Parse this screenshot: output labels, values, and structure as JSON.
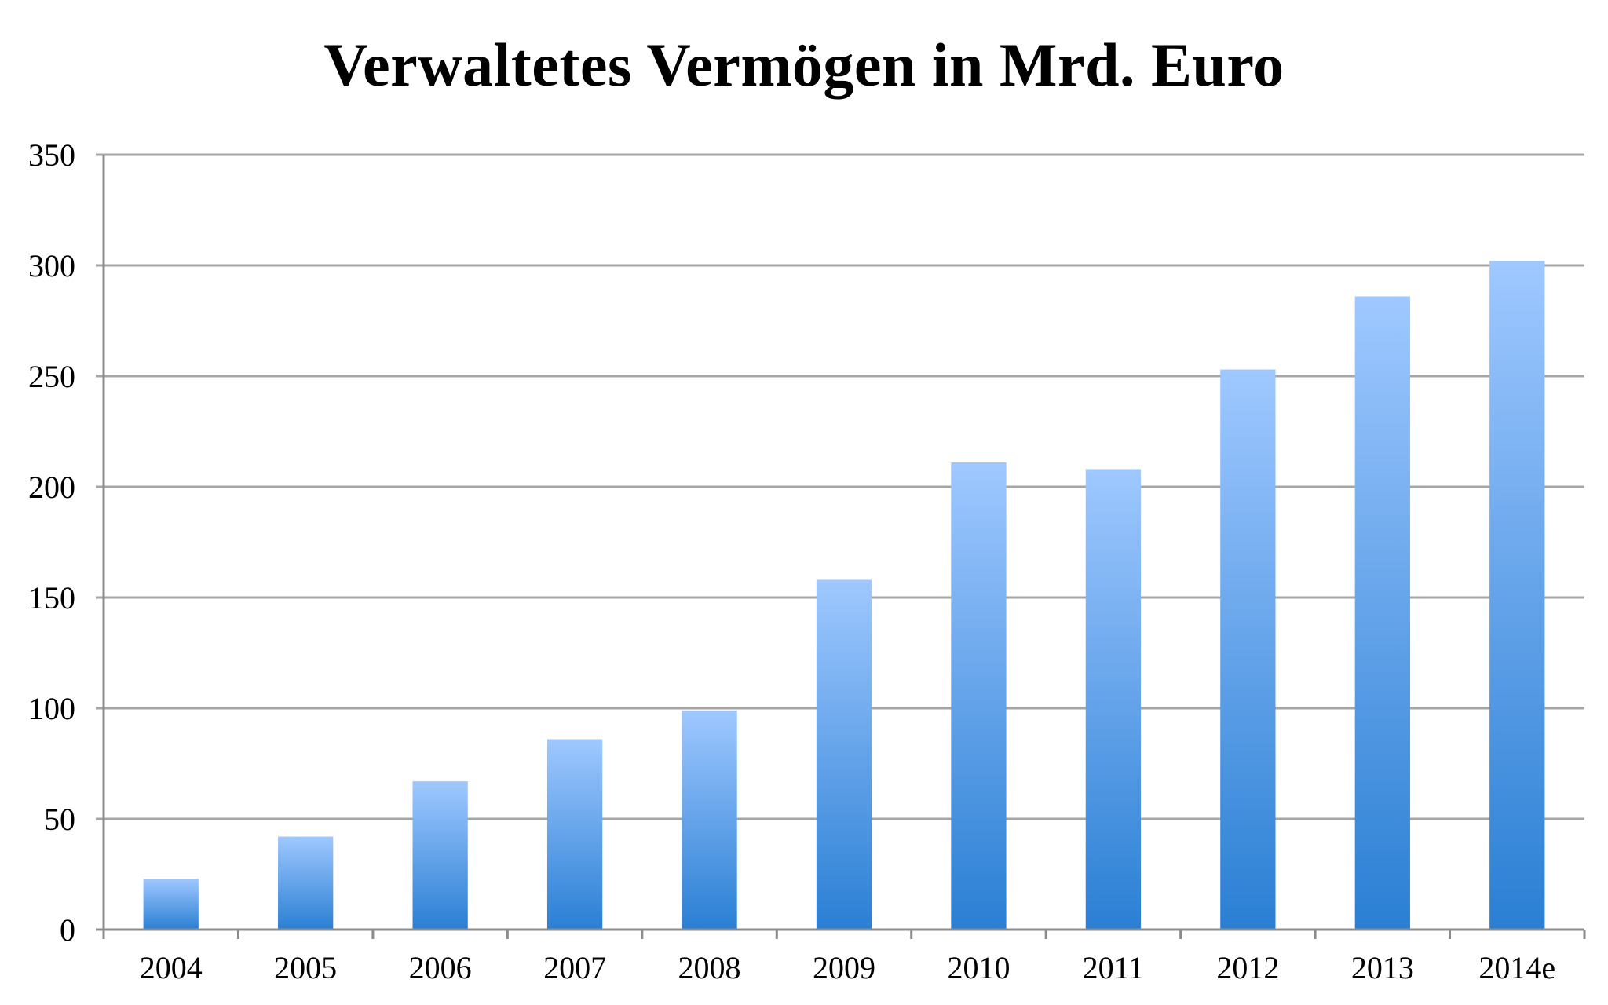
{
  "chart_data": {
    "type": "bar",
    "title": "Verwaltetes Vermögen in Mrd. Euro",
    "xlabel": "",
    "ylabel": "",
    "categories": [
      "2004",
      "2005",
      "2006",
      "2007",
      "2008",
      "2009",
      "2010",
      "2011",
      "2012",
      "2013",
      "2014e"
    ],
    "values": [
      23,
      42,
      67,
      86,
      99,
      158,
      211,
      208,
      253,
      286,
      302
    ],
    "ylim": [
      0,
      350
    ],
    "yticks": [
      0,
      50,
      100,
      150,
      200,
      250,
      300,
      350
    ],
    "grid": true,
    "legend": "none",
    "bar_color_top": "#9fc8ff",
    "bar_color_bottom": "#2a7fd4",
    "grid_color": "#a6a6a6",
    "axis_color": "#8c8c8c"
  }
}
